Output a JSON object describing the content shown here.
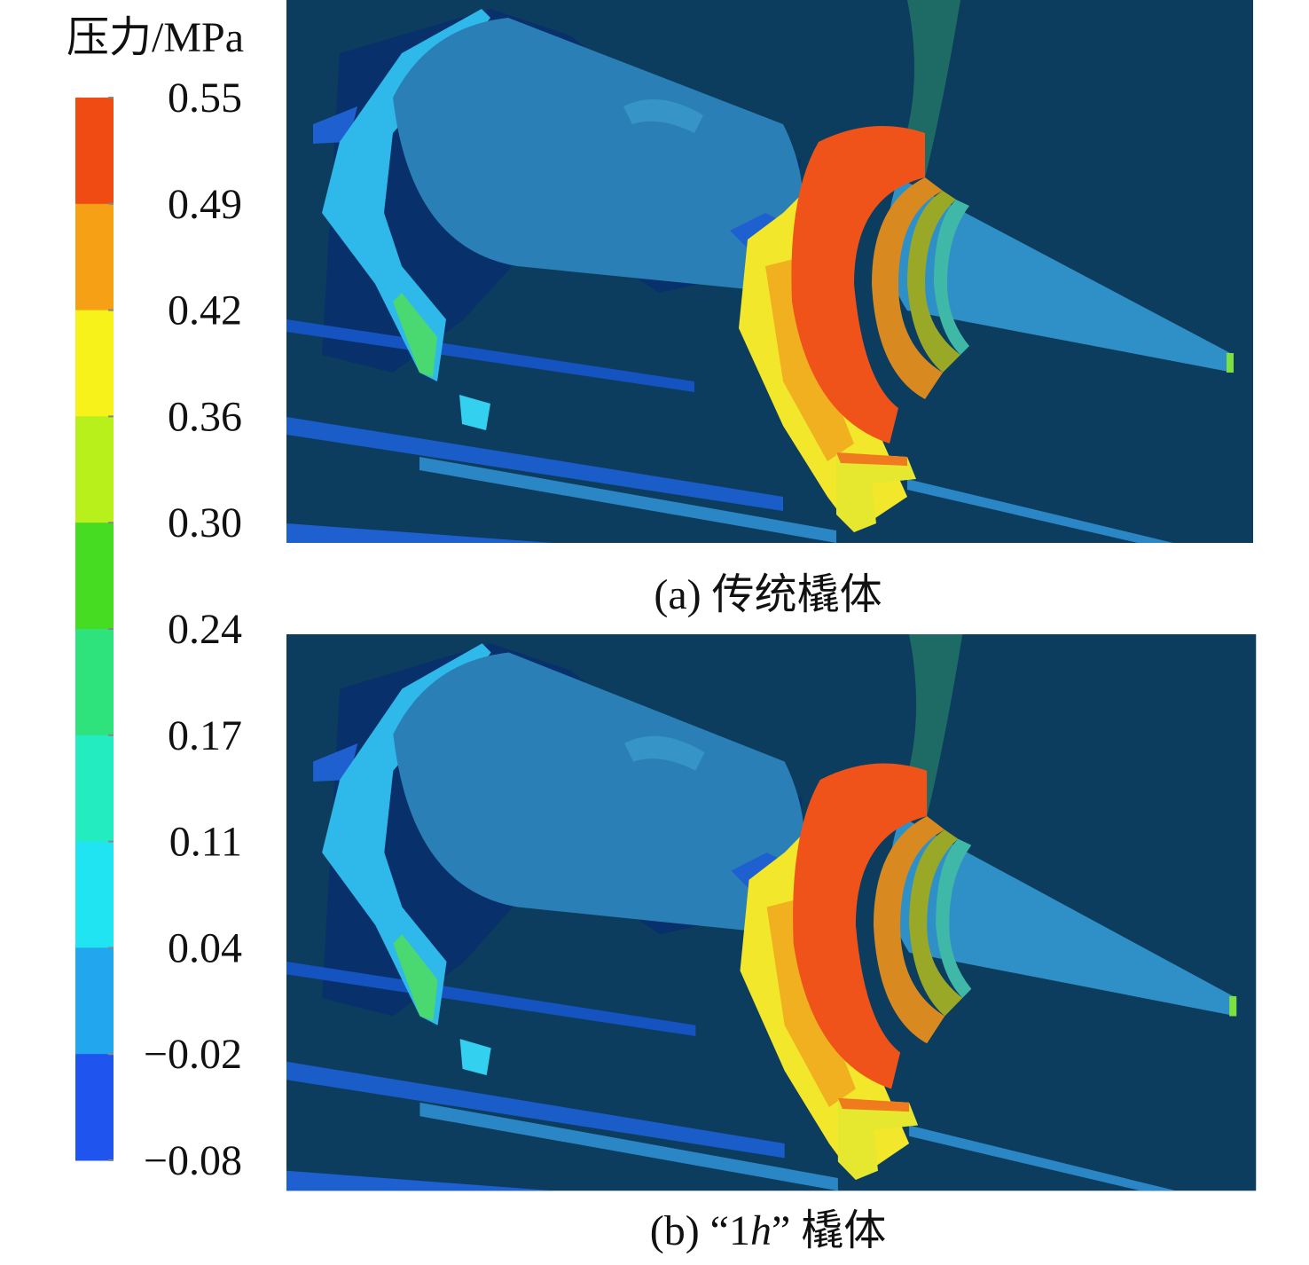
{
  "colorbar": {
    "title": "压力/MPa",
    "ticks": [
      "0.55",
      "0.49",
      "0.42",
      "0.36",
      "0.30",
      "0.24",
      "0.17",
      "0.11",
      "0.04",
      "−0.02",
      "−0.08"
    ],
    "colors": [
      "#f04b12",
      "#f5a015",
      "#f7f21a",
      "#b8f01c",
      "#46dc22",
      "#2ee27c",
      "#22ecc0",
      "#20e4f2",
      "#22a6ee",
      "#1f55ee"
    ]
  },
  "panels": [
    {
      "caption": "(a) 传统橇体"
    },
    {
      "caption": {
        "prefix": "(b) “1",
        "italic": "h",
        "suffix": "” 橇体"
      }
    }
  ]
}
